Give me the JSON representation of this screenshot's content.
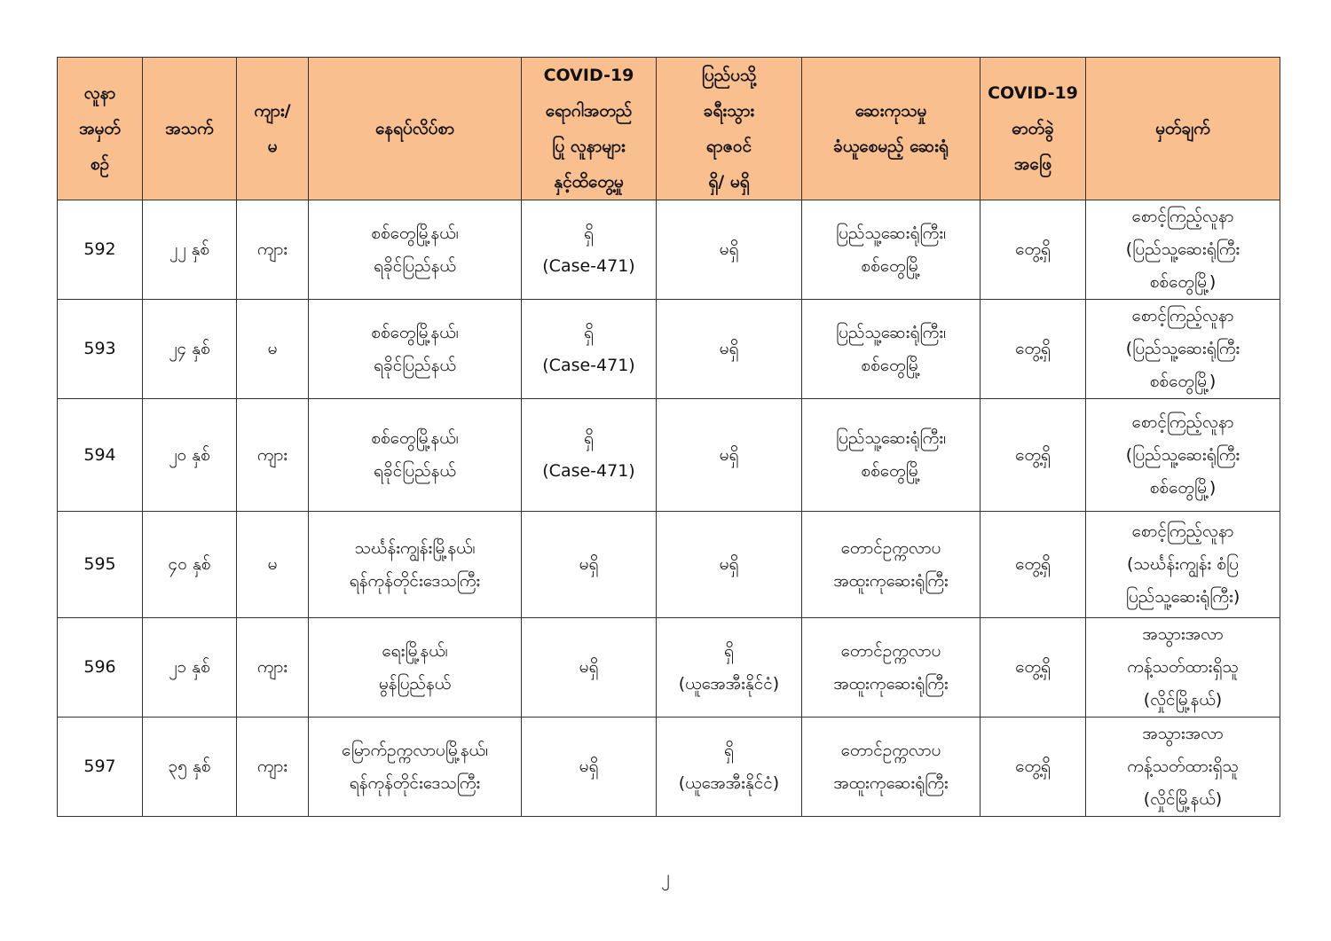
{
  "table": {
    "headers": [
      "လူနာ\nအမှတ်\nစဉ်",
      "အသက်",
      "ကျား/\nမ",
      "နေရပ်လိပ်စာ",
      "COVID-19\nရောဂါအတည်\nပြု လူနာများ\nနှင့်ထိတွေ့မှု",
      "ပြည်ပသို့\nခရီးသွား\nရာဇဝင်\nရှိ/ မရှိ",
      "ဆေးကုသမှု\nခံယူစေမည့် ဆေးရုံ",
      "COVID-19\nဓာတ်ခွဲ\nအဖြေ",
      "မှတ်ချက်"
    ],
    "rows": [
      [
        "592",
        "၂၂ နှစ်",
        "ကျား",
        "စစ်တွေမြို့နယ်၊\nရခိုင်ပြည်နယ်",
        "ရှိ\n(Case-471)",
        "မရှိ",
        "ပြည်သူ့ဆေးရုံကြီး၊\nစစ်တွေမြို့",
        "တွေ့ရှိ",
        "စောင့်ကြည့်လူနာ\n(ပြည်သူ့ဆေးရုံကြီး\nစစ်တွေမြို့)"
      ],
      [
        "593",
        "၂၄ နှစ်",
        "မ",
        "စစ်တွေမြို့နယ်၊\nရခိုင်ပြည်နယ်",
        "ရှိ\n(Case-471)",
        "မရှိ",
        "ပြည်သူ့ဆေးရုံကြီး၊\nစစ်တွေမြို့",
        "တွေ့ရှိ",
        "စောင့်ကြည့်လူနာ\n(ပြည်သူ့ဆေးရုံကြီး\nစစ်တွေမြို့)"
      ],
      [
        "594",
        "၂၀ နှစ်",
        "ကျား",
        "စစ်တွေမြို့နယ်၊\nရခိုင်ပြည်နယ်",
        "ရှိ\n(Case-471)",
        "မရှိ",
        "ပြည်သူ့ဆေးရုံကြီး၊\nစစ်တွေမြို့",
        "တွေ့ရှိ",
        "စောင့်ကြည့်လူနာ\n(ပြည်သူ့ဆေးရုံကြီး\nစစ်တွေမြို့)"
      ],
      [
        "595",
        "၄၀ နှစ်",
        "မ",
        "သင်္ဃန်းကျွန်းမြို့နယ်၊\nရန်ကုန်တိုင်းဒေသကြီး",
        "မရှိ",
        "မရှိ",
        "တောင်ဥက္ကလာပ\nအထူးကုဆေးရုံကြီး",
        "တွေ့ရှိ",
        "စောင့်ကြည့်လူနာ\n(သင်္ဃန်းကျွန်း စံပြ\nပြည်သူ့ဆေးရုံကြီး)"
      ],
      [
        "596",
        "၂၁ နှစ်",
        "ကျား",
        "ရေးမြို့နယ်၊\nမွန်ပြည်နယ်",
        "မရှိ",
        "ရှိ\n(ယူအေအီးနိုင်ငံ)",
        "တောင်ဥက္ကလာပ\nအထူးကုဆေးရုံကြီး",
        "တွေ့ရှိ",
        "အသွားအလာ\nကန့်သတ်ထားရှိသူ\n(လှိုင်မြို့နယ်)"
      ],
      [
        "597",
        "၃၅ နှစ်",
        "ကျား",
        "မြောက်ဥက္ကလာပမြို့နယ်၊\nရန်ကုန်တိုင်းဒေသကြီး",
        "မရှိ",
        "ရှိ\n(ယူအေအီးနိုင်ငံ)",
        "တောင်ဥက္ကလာပ\nအထူးကုဆေးရုံကြီး",
        "တွေ့ရှိ",
        "အသွားအလာ\nကန့်သတ်ထားရှိသူ\n(လှိုင်မြို့နယ်)"
      ]
    ]
  },
  "page_number": "၂",
  "colors": {
    "header_bg": "#f9bf8f",
    "border": "#333333"
  }
}
